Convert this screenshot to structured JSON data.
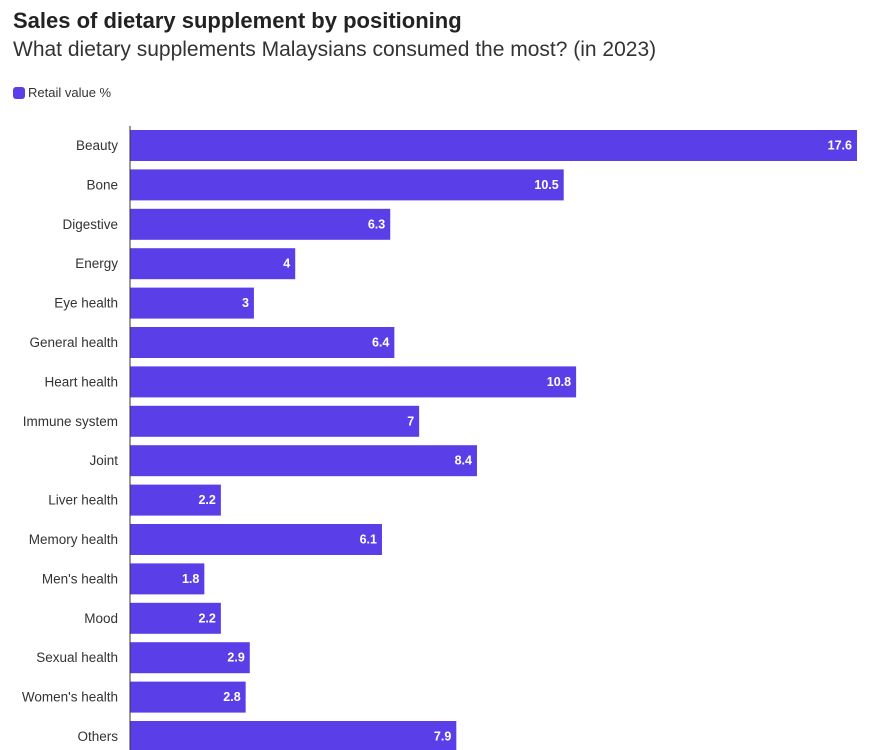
{
  "title": "Sales of dietary supplement by positioning",
  "subtitle": "What dietary supplements Malaysians consumed the most? (in 2023)",
  "colors": {
    "bar": "#5a3fe8",
    "axis": "#333333"
  },
  "chart_data": {
    "type": "bar",
    "orientation": "horizontal",
    "categories": [
      "Beauty",
      "Bone",
      "Digestive",
      "Energy",
      "Eye health",
      "General health",
      "Heart health",
      "Immune system",
      "Joint",
      "Liver health",
      "Memory health",
      "Men's health",
      "Mood",
      "Sexual health",
      "Women's health",
      "Others"
    ],
    "series": [
      {
        "name": "Retail value %",
        "values": [
          17.6,
          10.5,
          6.3,
          4,
          3,
          6.4,
          10.8,
          7,
          8.4,
          2.2,
          6.1,
          1.8,
          2.2,
          2.9,
          2.8,
          7.9
        ]
      }
    ],
    "xlim": [
      0,
      17.6
    ],
    "grid": false,
    "legend_position": "top-left",
    "data_labels": true
  }
}
